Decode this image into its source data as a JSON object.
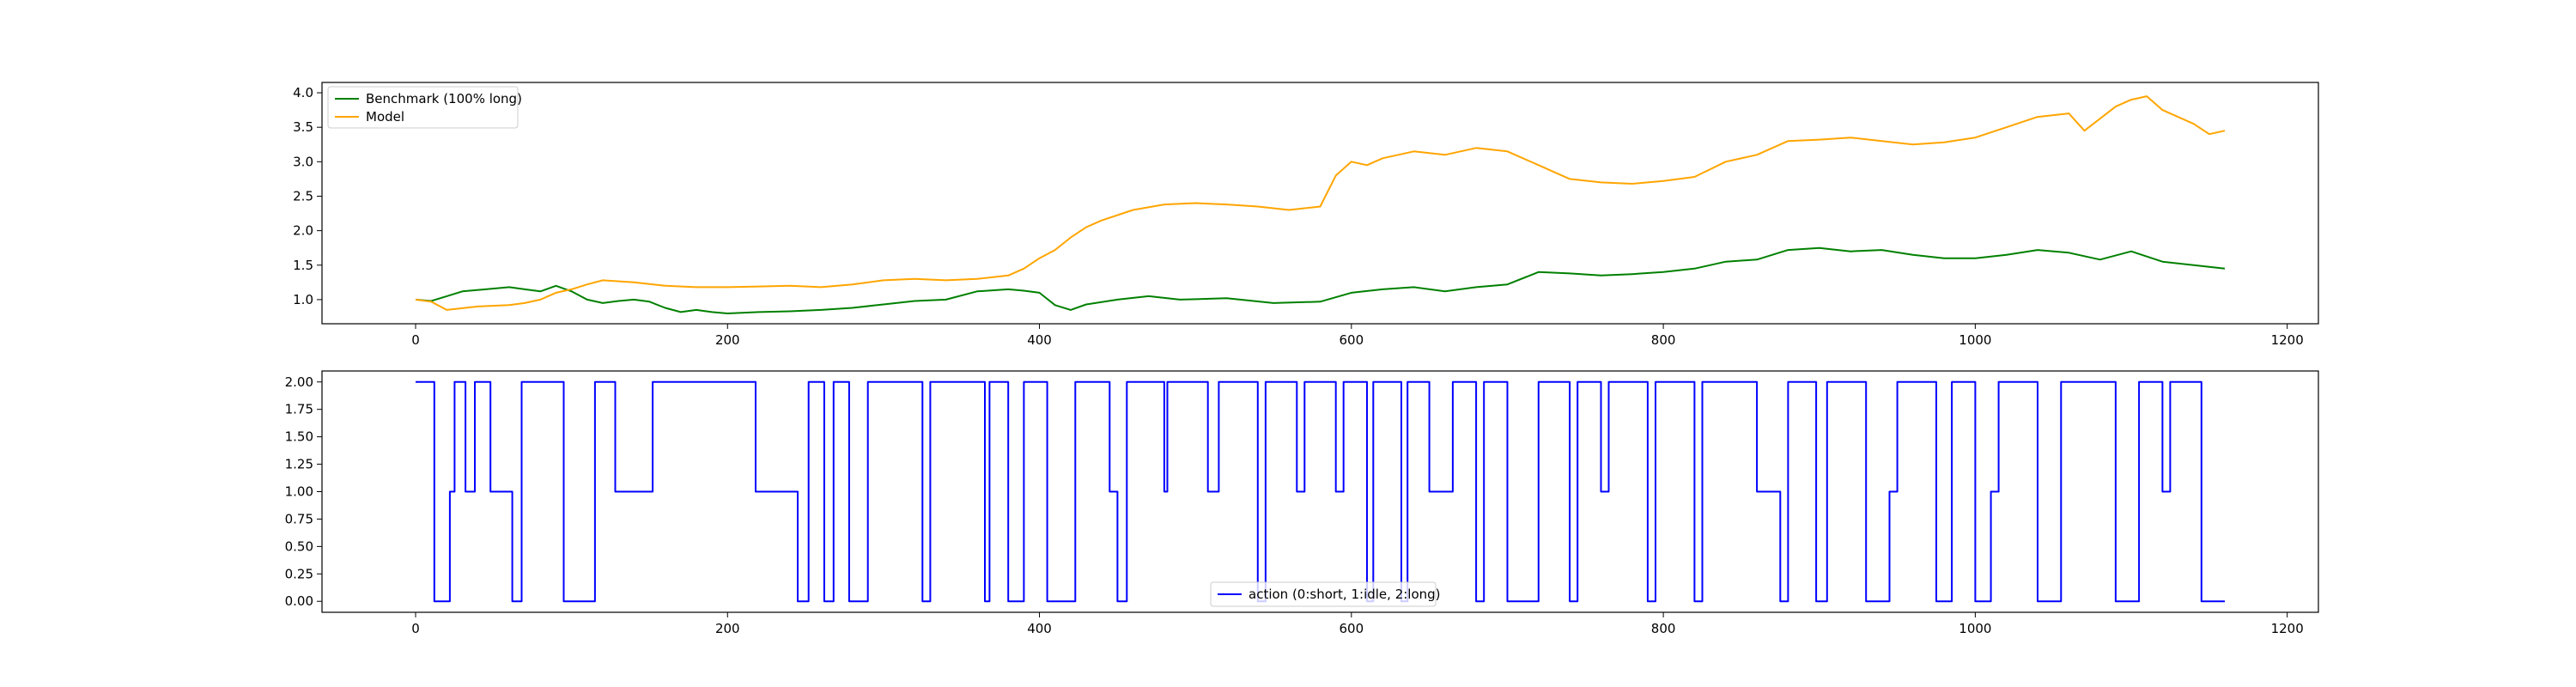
{
  "chart_data": [
    {
      "type": "line",
      "title": "",
      "xlabel": "",
      "ylabel": "",
      "xlim": [
        -60,
        1220
      ],
      "ylim": [
        0.65,
        4.15
      ],
      "x_ticks": [
        0,
        200,
        400,
        600,
        800,
        1000,
        1200
      ],
      "y_ticks": [
        1.0,
        1.5,
        2.0,
        2.5,
        3.0,
        3.5,
        4.0
      ],
      "y_tick_labels": [
        "1.0",
        "1.5",
        "2.0",
        "2.5",
        "3.0",
        "3.5",
        "4.0"
      ],
      "grid": false,
      "legend": "top-left",
      "series": [
        {
          "name": "Benchmark (100% long)",
          "color": "#008000",
          "points": [
            [
              0,
              1.0
            ],
            [
              10,
              0.98
            ],
            [
              20,
              1.05
            ],
            [
              30,
              1.12
            ],
            [
              45,
              1.15
            ],
            [
              60,
              1.18
            ],
            [
              70,
              1.15
            ],
            [
              80,
              1.12
            ],
            [
              90,
              1.2
            ],
            [
              100,
              1.12
            ],
            [
              110,
              1.0
            ],
            [
              120,
              0.95
            ],
            [
              130,
              0.98
            ],
            [
              140,
              1.0
            ],
            [
              150,
              0.97
            ],
            [
              160,
              0.88
            ],
            [
              170,
              0.82
            ],
            [
              180,
              0.85
            ],
            [
              190,
              0.82
            ],
            [
              200,
              0.8
            ],
            [
              220,
              0.82
            ],
            [
              240,
              0.83
            ],
            [
              260,
              0.85
            ],
            [
              280,
              0.88
            ],
            [
              300,
              0.93
            ],
            [
              320,
              0.98
            ],
            [
              340,
              1.0
            ],
            [
              360,
              1.12
            ],
            [
              380,
              1.15
            ],
            [
              390,
              1.13
            ],
            [
              400,
              1.1
            ],
            [
              410,
              0.92
            ],
            [
              420,
              0.85
            ],
            [
              430,
              0.93
            ],
            [
              450,
              1.0
            ],
            [
              470,
              1.05
            ],
            [
              490,
              1.0
            ],
            [
              520,
              1.02
            ],
            [
              550,
              0.95
            ],
            [
              580,
              0.97
            ],
            [
              600,
              1.1
            ],
            [
              620,
              1.15
            ],
            [
              640,
              1.18
            ],
            [
              660,
              1.12
            ],
            [
              680,
              1.18
            ],
            [
              700,
              1.22
            ],
            [
              720,
              1.4
            ],
            [
              740,
              1.38
            ],
            [
              760,
              1.35
            ],
            [
              780,
              1.37
            ],
            [
              800,
              1.4
            ],
            [
              820,
              1.45
            ],
            [
              840,
              1.55
            ],
            [
              860,
              1.58
            ],
            [
              880,
              1.72
            ],
            [
              900,
              1.75
            ],
            [
              920,
              1.7
            ],
            [
              940,
              1.72
            ],
            [
              960,
              1.65
            ],
            [
              980,
              1.6
            ],
            [
              1000,
              1.6
            ],
            [
              1020,
              1.65
            ],
            [
              1040,
              1.72
            ],
            [
              1060,
              1.68
            ],
            [
              1080,
              1.58
            ],
            [
              1100,
              1.7
            ],
            [
              1120,
              1.55
            ],
            [
              1140,
              1.5
            ],
            [
              1160,
              1.45
            ]
          ]
        },
        {
          "name": "Model",
          "color": "#ffa500",
          "points": [
            [
              0,
              1.0
            ],
            [
              10,
              0.97
            ],
            [
              20,
              0.85
            ],
            [
              40,
              0.9
            ],
            [
              60,
              0.92
            ],
            [
              70,
              0.95
            ],
            [
              80,
              1.0
            ],
            [
              90,
              1.1
            ],
            [
              100,
              1.15
            ],
            [
              110,
              1.22
            ],
            [
              120,
              1.28
            ],
            [
              140,
              1.25
            ],
            [
              160,
              1.2
            ],
            [
              180,
              1.18
            ],
            [
              200,
              1.18
            ],
            [
              240,
              1.2
            ],
            [
              260,
              1.18
            ],
            [
              280,
              1.22
            ],
            [
              300,
              1.28
            ],
            [
              320,
              1.3
            ],
            [
              340,
              1.28
            ],
            [
              360,
              1.3
            ],
            [
              380,
              1.35
            ],
            [
              390,
              1.45
            ],
            [
              400,
              1.6
            ],
            [
              410,
              1.72
            ],
            [
              420,
              1.9
            ],
            [
              430,
              2.05
            ],
            [
              440,
              2.15
            ],
            [
              460,
              2.3
            ],
            [
              480,
              2.38
            ],
            [
              500,
              2.4
            ],
            [
              520,
              2.38
            ],
            [
              540,
              2.35
            ],
            [
              560,
              2.3
            ],
            [
              580,
              2.35
            ],
            [
              590,
              2.8
            ],
            [
              600,
              3.0
            ],
            [
              610,
              2.95
            ],
            [
              620,
              3.05
            ],
            [
              640,
              3.15
            ],
            [
              660,
              3.1
            ],
            [
              680,
              3.2
            ],
            [
              700,
              3.15
            ],
            [
              720,
              2.95
            ],
            [
              740,
              2.75
            ],
            [
              760,
              2.7
            ],
            [
              780,
              2.68
            ],
            [
              800,
              2.72
            ],
            [
              820,
              2.78
            ],
            [
              840,
              3.0
            ],
            [
              860,
              3.1
            ],
            [
              880,
              3.3
            ],
            [
              900,
              3.32
            ],
            [
              920,
              3.35
            ],
            [
              940,
              3.3
            ],
            [
              960,
              3.25
            ],
            [
              980,
              3.28
            ],
            [
              1000,
              3.35
            ],
            [
              1020,
              3.5
            ],
            [
              1040,
              3.65
            ],
            [
              1060,
              3.7
            ],
            [
              1070,
              3.45
            ],
            [
              1090,
              3.8
            ],
            [
              1100,
              3.9
            ],
            [
              1110,
              3.95
            ],
            [
              1120,
              3.75
            ],
            [
              1140,
              3.55
            ],
            [
              1150,
              3.4
            ],
            [
              1160,
              3.45
            ]
          ]
        }
      ]
    },
    {
      "type": "line",
      "title": "",
      "xlabel": "",
      "ylabel": "",
      "xlim": [
        -60,
        1220
      ],
      "ylim": [
        -0.1,
        2.1
      ],
      "x_ticks": [
        0,
        200,
        400,
        600,
        800,
        1000,
        1200
      ],
      "y_ticks": [
        0.0,
        0.25,
        0.5,
        0.75,
        1.0,
        1.25,
        1.5,
        1.75,
        2.0
      ],
      "y_tick_labels": [
        "0.00",
        "0.25",
        "0.50",
        "0.75",
        "1.00",
        "1.25",
        "1.50",
        "1.75",
        "2.00"
      ],
      "grid": false,
      "legend": "lower-center",
      "series": [
        {
          "name": "action (0:short, 1:idle, 2:long)",
          "color": "#0000ff",
          "step_values": [
            [
              0,
              2
            ],
            [
              12,
              0
            ],
            [
              22,
              1
            ],
            [
              25,
              2
            ],
            [
              32,
              1
            ],
            [
              38,
              2
            ],
            [
              48,
              1
            ],
            [
              62,
              0
            ],
            [
              68,
              2
            ],
            [
              95,
              0
            ],
            [
              115,
              2
            ],
            [
              128,
              1
            ],
            [
              152,
              2
            ],
            [
              218,
              1
            ],
            [
              245,
              0
            ],
            [
              252,
              2
            ],
            [
              262,
              0
            ],
            [
              268,
              2
            ],
            [
              278,
              0
            ],
            [
              290,
              2
            ],
            [
              325,
              0
            ],
            [
              330,
              2
            ],
            [
              365,
              0
            ],
            [
              368,
              2
            ],
            [
              380,
              0
            ],
            [
              390,
              2
            ],
            [
              405,
              0
            ],
            [
              423,
              2
            ],
            [
              445,
              1
            ],
            [
              450,
              0
            ],
            [
              456,
              2
            ],
            [
              480,
              1
            ],
            [
              482,
              2
            ],
            [
              508,
              1
            ],
            [
              515,
              2
            ],
            [
              540,
              0
            ],
            [
              545,
              2
            ],
            [
              565,
              1
            ],
            [
              570,
              2
            ],
            [
              590,
              1
            ],
            [
              595,
              2
            ],
            [
              610,
              0
            ],
            [
              614,
              2
            ],
            [
              632,
              0
            ],
            [
              636,
              2
            ],
            [
              650,
              1
            ],
            [
              665,
              2
            ],
            [
              680,
              0
            ],
            [
              685,
              2
            ],
            [
              700,
              0
            ],
            [
              720,
              2
            ],
            [
              740,
              0
            ],
            [
              745,
              2
            ],
            [
              760,
              1
            ],
            [
              765,
              2
            ],
            [
              790,
              0
            ],
            [
              795,
              2
            ],
            [
              820,
              0
            ],
            [
              825,
              2
            ],
            [
              860,
              1
            ],
            [
              875,
              0
            ],
            [
              880,
              2
            ],
            [
              898,
              0
            ],
            [
              905,
              2
            ],
            [
              930,
              0
            ],
            [
              945,
              1
            ],
            [
              950,
              2
            ],
            [
              975,
              0
            ],
            [
              985,
              2
            ],
            [
              1000,
              0
            ],
            [
              1010,
              1
            ],
            [
              1015,
              2
            ],
            [
              1040,
              0
            ],
            [
              1055,
              2
            ],
            [
              1090,
              0
            ],
            [
              1105,
              2
            ],
            [
              1120,
              1
            ],
            [
              1125,
              2
            ],
            [
              1145,
              0
            ],
            [
              1160,
              0
            ]
          ]
        }
      ]
    }
  ]
}
